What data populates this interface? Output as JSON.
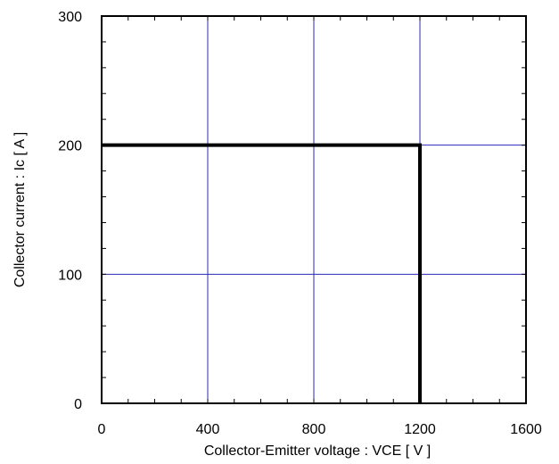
{
  "chart_data": {
    "type": "line",
    "title": "",
    "xlabel": "Collector-Emitter voltage : VCE [ V ]",
    "ylabel": "Collector current : Ic [ A ]",
    "xlim": [
      0,
      1600
    ],
    "ylim": [
      0,
      300
    ],
    "x_ticks": [
      0,
      400,
      800,
      1200,
      1600
    ],
    "y_ticks": [
      0,
      100,
      200,
      300
    ],
    "x_tick_labels": [
      "0",
      "400",
      "800",
      "1200",
      "1600"
    ],
    "y_tick_labels": [
      "0",
      "100",
      "200",
      "300"
    ],
    "x_minor_step": 100,
    "y_minor_step": 20,
    "grid": true,
    "series": [
      {
        "x": [
          0,
          1200,
          1200
        ],
        "y": [
          200,
          200,
          0
        ]
      }
    ],
    "colors": {
      "grid": "#2a2ab8",
      "series": "#000000",
      "frame": "#000000"
    }
  }
}
